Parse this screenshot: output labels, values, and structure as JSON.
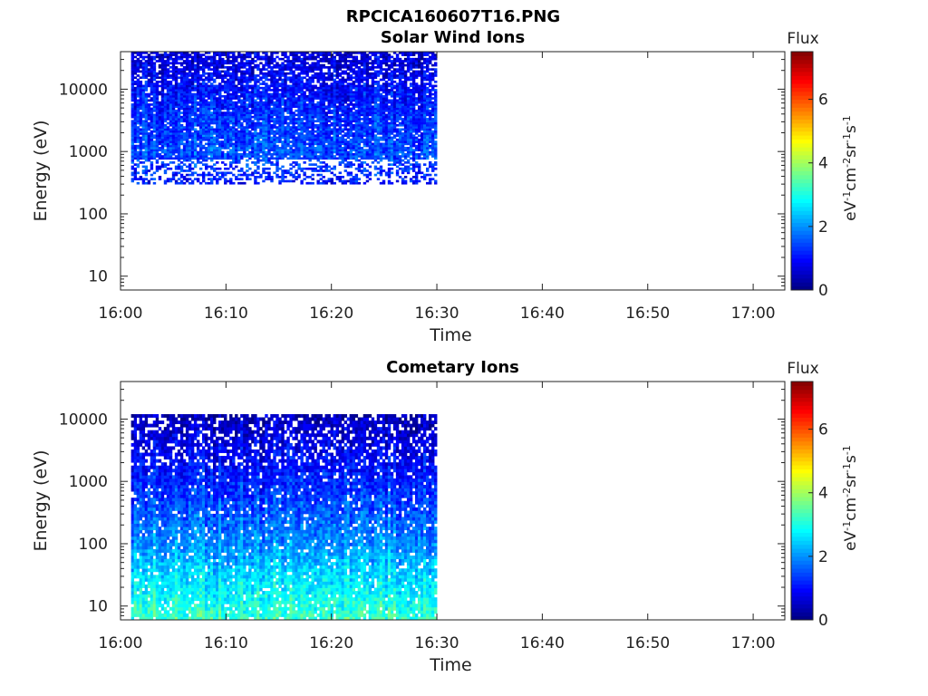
{
  "figure_title": "RPCICA160607T16.PNG",
  "chart_data": [
    {
      "type": "heatmap",
      "title": "Solar Wind Ions",
      "xlabel": "Time",
      "ylabel": "Energy (eV)",
      "y_scale": "log",
      "xlim": [
        "16:00",
        "17:03"
      ],
      "ylim": [
        6,
        40000
      ],
      "xticks": [
        "16:00",
        "16:10",
        "16:20",
        "16:30",
        "16:40",
        "16:50",
        "17:00"
      ],
      "yticks": [
        "10",
        "100",
        "1000",
        "10000"
      ],
      "data_time_range": [
        "16:01",
        "16:30"
      ],
      "energy_coverage": [
        300,
        40000
      ],
      "flux_levels": [
        {
          "energy": 300,
          "flux": 1.0
        },
        {
          "energy": 700,
          "flux": 1.4
        },
        {
          "energy": 1000,
          "flux": 1.5
        },
        {
          "energy": 3000,
          "flux": 1.3
        },
        {
          "energy": 10000,
          "flux": 1.0
        },
        {
          "energy": 40000,
          "flux": 0.6
        }
      ],
      "colorbar": {
        "label": "Flux",
        "units": "eV-1cm-2sr-1s-1",
        "range": [
          0,
          7.5
        ],
        "ticks": [
          "0",
          "2",
          "4",
          "6"
        ]
      }
    },
    {
      "type": "heatmap",
      "title": "Cometary Ions",
      "xlabel": "Time",
      "ylabel": "Energy (eV)",
      "y_scale": "log",
      "xlim": [
        "16:00",
        "17:03"
      ],
      "ylim": [
        6,
        40000
      ],
      "xticks": [
        "16:00",
        "16:10",
        "16:20",
        "16:30",
        "16:40",
        "16:50",
        "17:00"
      ],
      "yticks": [
        "10",
        "100",
        "1000",
        "10000"
      ],
      "data_time_range": [
        "16:01",
        "16:30"
      ],
      "energy_coverage": [
        6,
        12000
      ],
      "flux_levels": [
        {
          "energy": 6,
          "flux": 3.3
        },
        {
          "energy": 10,
          "flux": 3.0
        },
        {
          "energy": 30,
          "flux": 2.6
        },
        {
          "energy": 100,
          "flux": 2.0
        },
        {
          "energy": 1000,
          "flux": 1.2
        },
        {
          "energy": 5000,
          "flux": 0.7
        },
        {
          "energy": 12000,
          "flux": 0.4
        }
      ],
      "colorbar": {
        "label": "Flux",
        "units": "eV-1cm-2sr-1s-1",
        "range": [
          0,
          7.5
        ],
        "ticks": [
          "0",
          "2",
          "4",
          "6"
        ]
      }
    }
  ]
}
